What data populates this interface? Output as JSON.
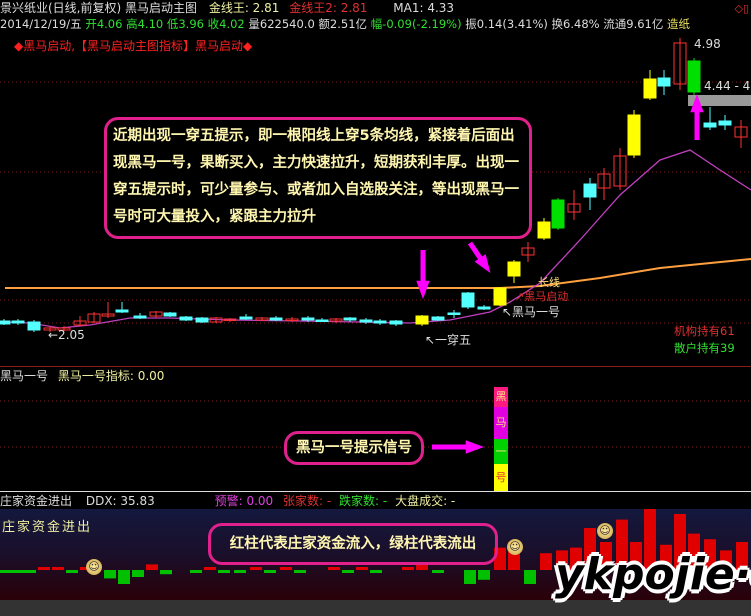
{
  "header": {
    "title": "景兴纸业(日线,前复权) 黑马启动主图",
    "jxw_label": "金线王: 2.81",
    "jxw2_label": "金线王2: 2.81",
    "ma1": "MA1: 4.33",
    "date": "2014/12/19/五",
    "open": "开4.06",
    "high": "高4.10",
    "low": "低3.96",
    "close": "收4.02",
    "volume": "量622540.0",
    "amount": "额2.51亿",
    "change": "幅-0.09(-2.19%)",
    "amplitude": "振0.14(3.41%)",
    "turnover": "换6.48%",
    "float": "流通9.61亿",
    "sector": "造纸",
    "indicator_title": "◆黑马启动,【黑马启动主图指标】黑马启动◆"
  },
  "main": {
    "annotation": "近期出现一穿五提示，即一根阳线上穿5条均线，紧接着后面出现黑马一号，果断买入，主力快速拉升，短期获利丰厚。出现一穿五提示时，可少量参与、或者加入自选股关注，等出现黑马一号时可大量投入，紧跟主力拉升",
    "high_label": "4.98",
    "low_label": "←2.05",
    "cur_label": "4.44 - 4.3",
    "yichuanwu": "↖一穿五",
    "heima_yihao": "↖黑马一号",
    "changxian": "长线",
    "heima_qidong": "↗黑马启动",
    "institution": "机构持有61",
    "retail": "散户持有39"
  },
  "panel2": {
    "name": "黑马一号",
    "indicator": "黑马一号指标: 0.00",
    "annotation": "黑马一号提示信号",
    "signal_chars": [
      "黑",
      "马",
      "一",
      "号"
    ]
  },
  "panel3": {
    "name": "庄家资金进出",
    "ddx": "DDX: 35.83",
    "warning": "预警: 0.00",
    "up_count": "张家数: -",
    "down_count": "跌家数: -",
    "market_vol": "大盘成交: -",
    "inner_label": "庄家资金进出",
    "annotation": "红柱代表庄家资金流入，绿柱代表流出",
    "watermark": "ykpojie·com"
  },
  "colors": {
    "up": "#ff3232",
    "down": "#54ffff",
    "yellow": "#ffff00",
    "green": "#00e000",
    "magenta": "#ff00ff",
    "orange": "#ffa040",
    "annot": "#e0208c"
  }
}
